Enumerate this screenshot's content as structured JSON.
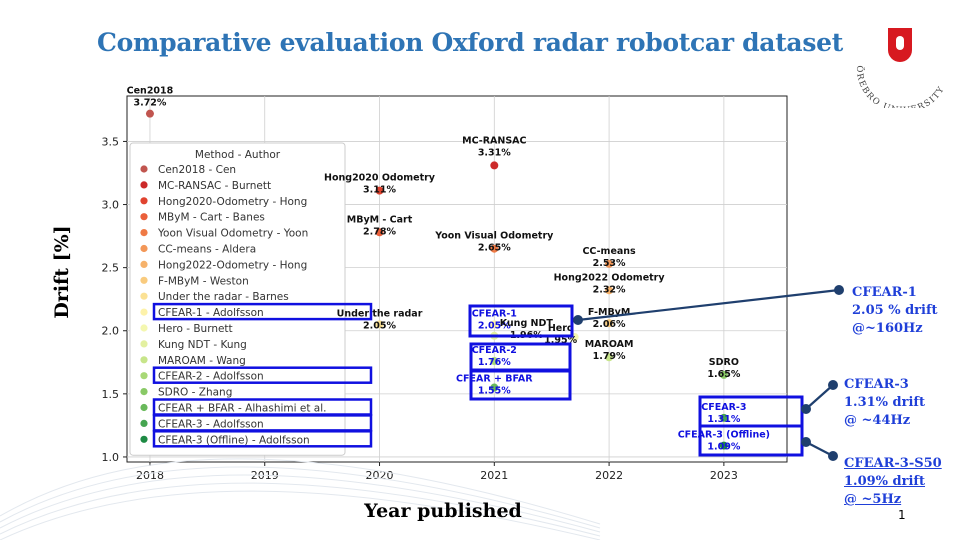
{
  "slide_title": "Comparative evaluation Oxford radar robotcar dataset",
  "logo_text": "ÖREBRO UNIVERSITY",
  "page_number": "1",
  "colors": {
    "title": "#2e74b5",
    "highlight": "#1010e0",
    "callout": "#1f3fd8",
    "connector": "#1f3f6e"
  },
  "chart_data": {
    "type": "scatter",
    "xlabel": "Year published",
    "ylabel": "Drift [%]",
    "xlim": [
      2017.8,
      2023.55
    ],
    "ylim": [
      0.96,
      3.86
    ],
    "xticks": [
      "2018",
      "2019",
      "2020",
      "2021",
      "2022",
      "2023"
    ],
    "yticks": [
      "1.0",
      "1.5",
      "2.0",
      "2.5",
      "3.0",
      "3.5"
    ],
    "grid": true,
    "legend": {
      "title": "Method - Author",
      "placement": "left"
    },
    "series": [
      {
        "name": "Cen2018 - Cen",
        "x": 2018,
        "y": 3.72,
        "label": "Cen2018",
        "value_label": "3.72%",
        "color": "#c1554f"
      },
      {
        "name": "MC-RANSAC - Burnett",
        "x": 2021,
        "y": 3.31,
        "label": "MC-RANSAC",
        "value_label": "3.31%",
        "color": "#cc2a2a"
      },
      {
        "name": "Hong2020-Odometry - Hong",
        "x": 2020,
        "y": 3.11,
        "label": "Hong2020 Odometry",
        "value_label": "3.11%",
        "color": "#e0432f"
      },
      {
        "name": "MByM - Cart - Banes",
        "x": 2020,
        "y": 2.78,
        "label": "MByM - Cart",
        "value_label": "2.78%",
        "color": "#ea5f3a"
      },
      {
        "name": "Yoon Visual Odometry - Yoon",
        "x": 2021,
        "y": 2.65,
        "label": "Yoon Visual Odometry",
        "value_label": "2.65%",
        "color": "#ef7a45"
      },
      {
        "name": "CC-means - Aldera",
        "x": 2022,
        "y": 2.53,
        "label": "CC-means",
        "value_label": "2.53%",
        "color": "#f39758"
      },
      {
        "name": "Hong2022-Odometry - Hong",
        "x": 2022,
        "y": 2.32,
        "label": "Hong2022 Odometry",
        "value_label": "2.32%",
        "color": "#f6b26b"
      },
      {
        "name": "F-MByM - Weston",
        "x": 2022,
        "y": 2.06,
        "label": "F-MByM",
        "value_label": "2.06%",
        "color": "#f9cb7e"
      },
      {
        "name": "Under the radar - Barnes",
        "x": 2020,
        "y": 2.05,
        "label": "Under the radar",
        "value_label": "2.05%",
        "color": "#fbe194"
      },
      {
        "name": "CFEAR-1 - Adolfsson",
        "x": 2021,
        "y": 2.05,
        "label": "CFEAR-1",
        "value_label": "2.05%",
        "color": "#fdf2aa",
        "blue": true
      },
      {
        "name": "Hero - Burnett",
        "x": 2021.7,
        "y": 1.95,
        "label": "Hero",
        "value_label": "1.95%",
        "color": "#f4f7b0"
      },
      {
        "name": "Kung NDT - Kung",
        "x": 2021,
        "y": 1.96,
        "label": "Kung NDT",
        "value_label": "1.96%",
        "color": "#e3f0a0"
      },
      {
        "name": "MAROAM - Wang",
        "x": 2022,
        "y": 1.79,
        "label": "MAROAM",
        "value_label": "1.79%",
        "color": "#c7e58a"
      },
      {
        "name": "CFEAR-2 - Adolfsson",
        "x": 2021,
        "y": 1.76,
        "label": "CFEAR-2",
        "value_label": "1.76%",
        "color": "#a8d876",
        "blue": true
      },
      {
        "name": "SDRO - Zhang",
        "x": 2023,
        "y": 1.65,
        "label": "SDRO",
        "value_label": "1.65%",
        "color": "#89c966"
      },
      {
        "name": "CFEAR + BFAR - Alhashimi et al.",
        "x": 2021,
        "y": 1.55,
        "label": "CFEAR + BFAR",
        "value_label": "1.55%",
        "color": "#69b95b",
        "blue": true
      },
      {
        "name": "CFEAR-3 - Adolfsson",
        "x": 2023,
        "y": 1.31,
        "label": "CFEAR-3",
        "value_label": "1.31%",
        "color": "#46a551",
        "blue": true
      },
      {
        "name": "CFEAR-3 (Offline) - Adolfsson",
        "x": 2023,
        "y": 1.09,
        "label": "CFEAR-3 (Offline)",
        "value_label": "1.09%",
        "color": "#1e8a44",
        "blue": true
      }
    ]
  },
  "callouts": [
    {
      "id": "callout-1",
      "lines": [
        "CFEAR-1",
        "2.05 % drift",
        "@~160Hz"
      ]
    },
    {
      "id": "callout-2",
      "lines": [
        "CFEAR-3",
        "1.31% drift",
        "@ ~44Hz"
      ]
    },
    {
      "id": "callout-3",
      "lines": [
        "CFEAR-3-S50",
        "1.09% drift",
        "@ ~5Hz"
      ]
    }
  ]
}
